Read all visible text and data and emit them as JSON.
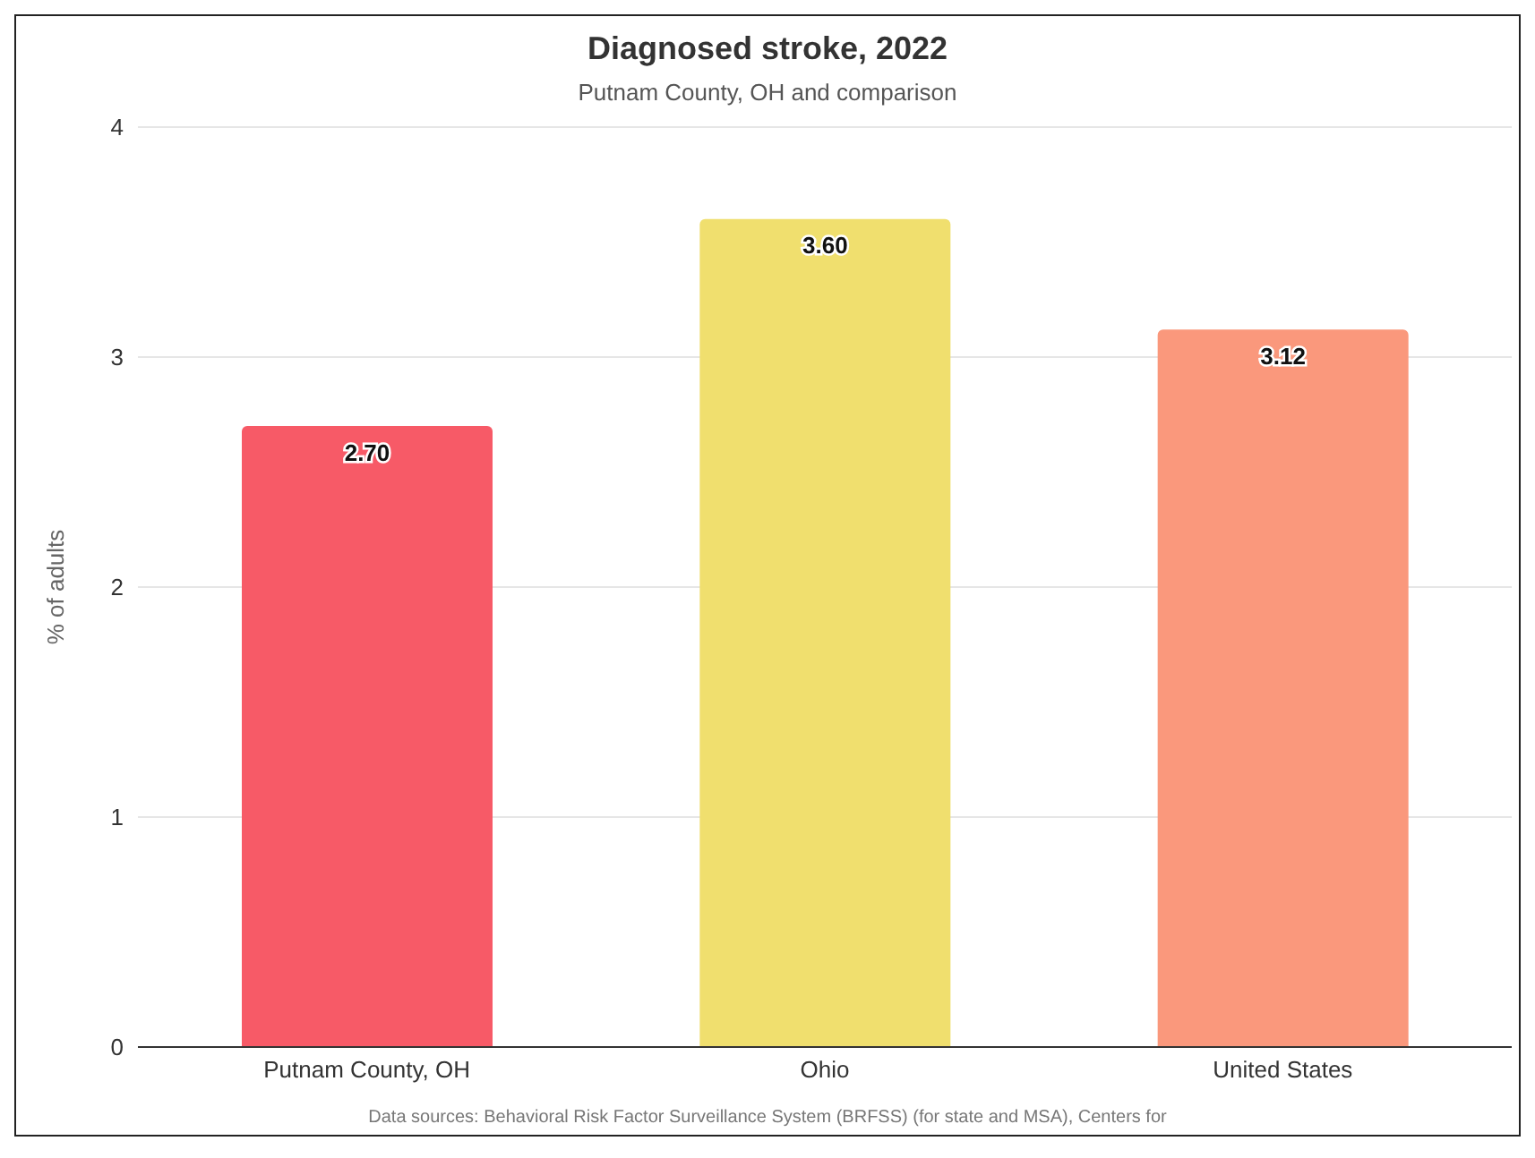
{
  "chart_data": {
    "type": "bar",
    "title": "Diagnosed stroke, 2022",
    "subtitle": "Putnam County, OH and comparison",
    "ylabel": "% of adults",
    "categories": [
      "Putnam County, OH",
      "Ohio",
      "United States"
    ],
    "values": [
      2.7,
      3.6,
      3.12
    ],
    "colors": [
      "#f75a67",
      "#f0df6e",
      "#fa987c"
    ],
    "value_labels": [
      "2.70",
      "3.60",
      "3.12"
    ],
    "ylim": [
      0,
      4
    ],
    "yticks": [
      0,
      1,
      2,
      3,
      4
    ],
    "grid": "y",
    "legend": false,
    "annotations": [
      "Data sources: Behavioral Risk Factor Surveillance System (BRFSS) (for state and MSA), Centers for"
    ]
  }
}
